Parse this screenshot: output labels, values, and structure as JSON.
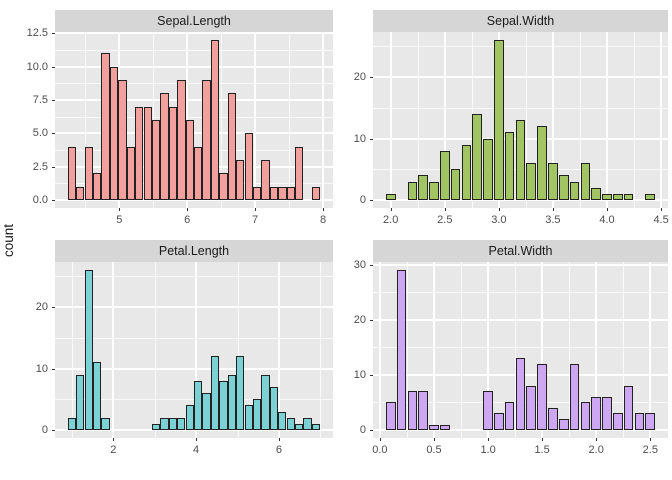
{
  "figure": {
    "ylab": "count",
    "background": "#ffffff",
    "panel_bg": "#e8e8e8",
    "strip_bg": "#d6d6d6",
    "grid_color": "#ffffff",
    "bar_stroke": "#222222",
    "axis_text_color": "#4d4d4d",
    "strip_text_color": "#1a1a1a"
  },
  "chart_data": {
    "type": "bar",
    "subtype": "faceted-histograms",
    "legend": "none",
    "facets": [
      {
        "title": "Sepal.Length",
        "fill": "#f2a09d",
        "x_range": [
          4.054,
          8.146
        ],
        "y_range": [
          -0.6,
          12.6
        ],
        "x_ticks": [
          5,
          6,
          7,
          8
        ],
        "x_tick_labels": [
          "5",
          "6",
          "7",
          "8"
        ],
        "x_minor": [
          4.5,
          5.5,
          6.5,
          7.5
        ],
        "y_ticks": [
          0,
          2.5,
          5,
          7.5,
          10,
          12.5
        ],
        "y_tick_labels": [
          "0.0",
          "2.5",
          "5.0",
          "7.5",
          "10.0",
          "12.5"
        ],
        "y_minor": [
          1.25,
          3.75,
          6.25,
          8.75,
          11.25
        ],
        "bar_width": 0.124,
        "bars": [
          {
            "x": 4.302,
            "count": 4
          },
          {
            "x": 4.426,
            "count": 1
          },
          {
            "x": 4.55,
            "count": 4
          },
          {
            "x": 4.674,
            "count": 2
          },
          {
            "x": 4.798,
            "count": 11
          },
          {
            "x": 4.922,
            "count": 10
          },
          {
            "x": 5.046,
            "count": 9
          },
          {
            "x": 5.17,
            "count": 4
          },
          {
            "x": 5.294,
            "count": 7
          },
          {
            "x": 5.418,
            "count": 7
          },
          {
            "x": 5.542,
            "count": 6
          },
          {
            "x": 5.666,
            "count": 8
          },
          {
            "x": 5.79,
            "count": 7
          },
          {
            "x": 5.914,
            "count": 9
          },
          {
            "x": 6.038,
            "count": 6
          },
          {
            "x": 6.162,
            "count": 4
          },
          {
            "x": 6.286,
            "count": 9
          },
          {
            "x": 6.41,
            "count": 12
          },
          {
            "x": 6.534,
            "count": 2
          },
          {
            "x": 6.658,
            "count": 8
          },
          {
            "x": 6.782,
            "count": 3
          },
          {
            "x": 6.906,
            "count": 5
          },
          {
            "x": 7.03,
            "count": 1
          },
          {
            "x": 7.154,
            "count": 3
          },
          {
            "x": 7.278,
            "count": 1
          },
          {
            "x": 7.402,
            "count": 1
          },
          {
            "x": 7.526,
            "count": 1
          },
          {
            "x": 7.65,
            "count": 4
          },
          {
            "x": 7.898,
            "count": 1
          }
        ]
      },
      {
        "title": "Sepal.Width",
        "fill": "#a3c463",
        "x_range": [
          1.836,
          4.564
        ],
        "y_range": [
          -1.3,
          27.3
        ],
        "x_ticks": [
          2.0,
          2.5,
          3.0,
          3.5,
          4.0,
          4.5
        ],
        "x_tick_labels": [
          "2.0",
          "2.5",
          "3.0",
          "3.5",
          "4.0",
          "4.5"
        ],
        "x_minor": [
          2.25,
          2.75,
          3.25,
          3.75,
          4.25
        ],
        "y_ticks": [
          0,
          10,
          20
        ],
        "y_tick_labels": [
          "0",
          "10",
          "20"
        ],
        "y_minor": [
          5,
          15,
          25
        ],
        "bar_width": 0.09,
        "bars": [
          {
            "x": 2.0,
            "count": 1
          },
          {
            "x": 2.2,
            "count": 3
          },
          {
            "x": 2.3,
            "count": 4
          },
          {
            "x": 2.4,
            "count": 3
          },
          {
            "x": 2.5,
            "count": 8
          },
          {
            "x": 2.6,
            "count": 5
          },
          {
            "x": 2.7,
            "count": 9
          },
          {
            "x": 2.8,
            "count": 14
          },
          {
            "x": 2.9,
            "count": 10
          },
          {
            "x": 3.0,
            "count": 26
          },
          {
            "x": 3.1,
            "count": 11
          },
          {
            "x": 3.2,
            "count": 13
          },
          {
            "x": 3.3,
            "count": 6
          },
          {
            "x": 3.4,
            "count": 12
          },
          {
            "x": 3.5,
            "count": 6
          },
          {
            "x": 3.6,
            "count": 4
          },
          {
            "x": 3.7,
            "count": 3
          },
          {
            "x": 3.8,
            "count": 6
          },
          {
            "x": 3.9,
            "count": 2
          },
          {
            "x": 4.0,
            "count": 1
          },
          {
            "x": 4.1,
            "count": 1
          },
          {
            "x": 4.2,
            "count": 1
          },
          {
            "x": 4.4,
            "count": 1
          }
        ]
      },
      {
        "title": "Petal.Length",
        "fill": "#7cd1d4",
        "x_range": [
          0.593,
          7.307
        ],
        "y_range": [
          -1.3,
          27.3
        ],
        "x_ticks": [
          2,
          4,
          6
        ],
        "x_tick_labels": [
          "2",
          "4",
          "6"
        ],
        "x_minor": [
          1,
          3,
          5,
          7
        ],
        "y_ticks": [
          0,
          10,
          20
        ],
        "y_tick_labels": [
          "0",
          "10",
          "20"
        ],
        "y_minor": [
          5,
          15,
          25
        ],
        "bar_width": 0.2034,
        "bars": [
          {
            "x": 1.0,
            "count": 2
          },
          {
            "x": 1.203,
            "count": 9
          },
          {
            "x": 1.407,
            "count": 26
          },
          {
            "x": 1.61,
            "count": 11
          },
          {
            "x": 1.813,
            "count": 2
          },
          {
            "x": 3.034,
            "count": 1
          },
          {
            "x": 3.237,
            "count": 2
          },
          {
            "x": 3.44,
            "count": 2
          },
          {
            "x": 3.644,
            "count": 2
          },
          {
            "x": 3.847,
            "count": 4
          },
          {
            "x": 4.051,
            "count": 8
          },
          {
            "x": 4.254,
            "count": 6
          },
          {
            "x": 4.457,
            "count": 12
          },
          {
            "x": 4.661,
            "count": 8
          },
          {
            "x": 4.864,
            "count": 9
          },
          {
            "x": 5.067,
            "count": 12
          },
          {
            "x": 5.271,
            "count": 4
          },
          {
            "x": 5.474,
            "count": 5
          },
          {
            "x": 5.677,
            "count": 9
          },
          {
            "x": 5.881,
            "count": 7
          },
          {
            "x": 6.084,
            "count": 3
          },
          {
            "x": 6.287,
            "count": 2
          },
          {
            "x": 6.491,
            "count": 1
          },
          {
            "x": 6.694,
            "count": 2
          },
          {
            "x": 6.897,
            "count": 1
          }
        ]
      },
      {
        "title": "Petal.Width",
        "fill": "#cea7f2",
        "x_range": [
          -0.064,
          2.664
        ],
        "y_range": [
          -1.45,
          30.45
        ],
        "x_ticks": [
          0,
          0.5,
          1.0,
          1.5,
          2.0,
          2.5
        ],
        "x_tick_labels": [
          "0.0",
          "0.5",
          "1.0",
          "1.5",
          "2.0",
          "2.5"
        ],
        "x_minor": [
          0.25,
          0.75,
          1.25,
          1.75,
          2.25
        ],
        "y_ticks": [
          0,
          10,
          20,
          30
        ],
        "y_tick_labels": [
          "0",
          "10",
          "20",
          "30"
        ],
        "y_minor": [
          5,
          15,
          25
        ],
        "bar_width": 0.09,
        "bars": [
          {
            "x": 0.1,
            "count": 5
          },
          {
            "x": 0.2,
            "count": 29
          },
          {
            "x": 0.3,
            "count": 7
          },
          {
            "x": 0.4,
            "count": 7
          },
          {
            "x": 0.5,
            "count": 1
          },
          {
            "x": 0.6,
            "count": 1
          },
          {
            "x": 1.0,
            "count": 7
          },
          {
            "x": 1.1,
            "count": 3
          },
          {
            "x": 1.2,
            "count": 5
          },
          {
            "x": 1.3,
            "count": 13
          },
          {
            "x": 1.4,
            "count": 8
          },
          {
            "x": 1.5,
            "count": 12
          },
          {
            "x": 1.6,
            "count": 4
          },
          {
            "x": 1.7,
            "count": 2
          },
          {
            "x": 1.8,
            "count": 12
          },
          {
            "x": 1.9,
            "count": 5
          },
          {
            "x": 2.0,
            "count": 6
          },
          {
            "x": 2.1,
            "count": 6
          },
          {
            "x": 2.2,
            "count": 3
          },
          {
            "x": 2.3,
            "count": 8
          },
          {
            "x": 2.4,
            "count": 3
          },
          {
            "x": 2.5,
            "count": 3
          }
        ]
      }
    ]
  }
}
